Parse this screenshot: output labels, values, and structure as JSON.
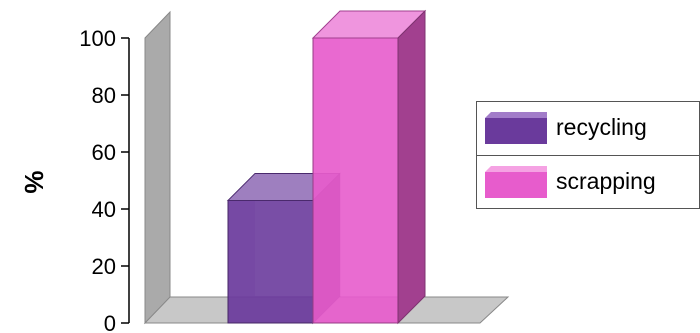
{
  "chart_data": {
    "type": "bar",
    "style": "3d",
    "categories": [
      ""
    ],
    "series": [
      {
        "name": "recycling",
        "values": [
          43
        ],
        "color": "#6a3a9c"
      },
      {
        "name": "scrapping",
        "values": [
          100
        ],
        "color": "#e75ccc"
      }
    ],
    "ylabel": "%",
    "xlabel": "",
    "ylim": [
      0,
      100
    ],
    "yticks": [
      "0",
      "20",
      "40",
      "60",
      "80",
      "100"
    ],
    "legend_position": "right",
    "grid": false,
    "wall_color": "#aaaaaa",
    "floor_color": "#c8c8c8"
  }
}
